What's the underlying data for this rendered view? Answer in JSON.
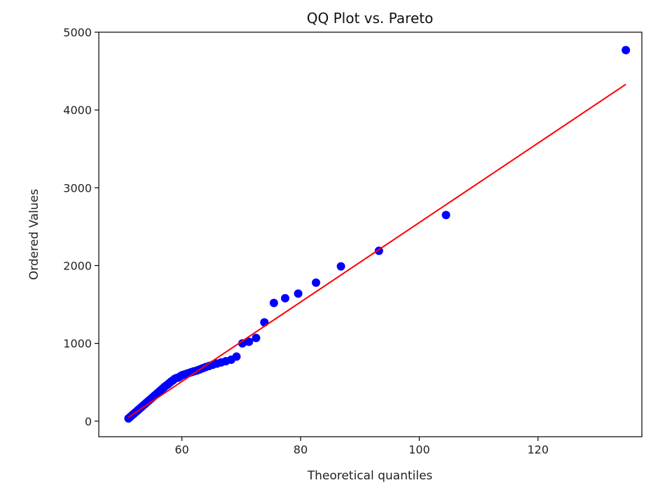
{
  "chart_data": {
    "type": "scatter",
    "title": "QQ Plot vs. Pareto",
    "xlabel": "Theoretical quantiles",
    "ylabel": "Ordered Values",
    "xlim": [
      46,
      137.5
    ],
    "ylim": [
      -200,
      5000
    ],
    "xticks": [
      60,
      80,
      100,
      120
    ],
    "yticks": [
      0,
      1000,
      2000,
      3000,
      4000,
      5000
    ],
    "grid": false,
    "marker_color": "#0000ff",
    "line_color": "#ff0000",
    "series": [
      {
        "kind": "points",
        "x": [
          51.0,
          51.3,
          51.6,
          51.9,
          52.2,
          52.5,
          52.8,
          53.1,
          53.4,
          53.7,
          54.0,
          54.3,
          54.6,
          54.9,
          55.2,
          55.5,
          55.8,
          56.1,
          56.4,
          56.7,
          57.0,
          57.3,
          57.6,
          57.9,
          58.2,
          58.5,
          58.8,
          59.1,
          59.4,
          59.7,
          60.0,
          60.4,
          60.8,
          61.2,
          61.6,
          62.0,
          62.5,
          63.0,
          63.5,
          64.0,
          64.6,
          65.2,
          65.9,
          66.6,
          67.4,
          68.3,
          69.2,
          70.2,
          71.3,
          72.5,
          73.9,
          75.5,
          77.4,
          79.6,
          82.6,
          86.8,
          93.2,
          104.5,
          134.8
        ],
        "y": [
          35,
          55,
          75,
          95,
          115,
          135,
          155,
          175,
          195,
          215,
          235,
          255,
          275,
          295,
          315,
          335,
          355,
          375,
          395,
          415,
          435,
          455,
          470,
          490,
          510,
          525,
          545,
          555,
          560,
          575,
          590,
          600,
          610,
          620,
          630,
          640,
          650,
          665,
          680,
          695,
          710,
          725,
          740,
          755,
          770,
          790,
          830,
          1000,
          1020,
          1070,
          1270,
          1520,
          1580,
          1640,
          1780,
          1990,
          2190,
          2650,
          4770
        ]
      },
      {
        "kind": "fit-line",
        "x": [
          51.0,
          134.8
        ],
        "y": [
          50,
          4330
        ]
      }
    ]
  }
}
